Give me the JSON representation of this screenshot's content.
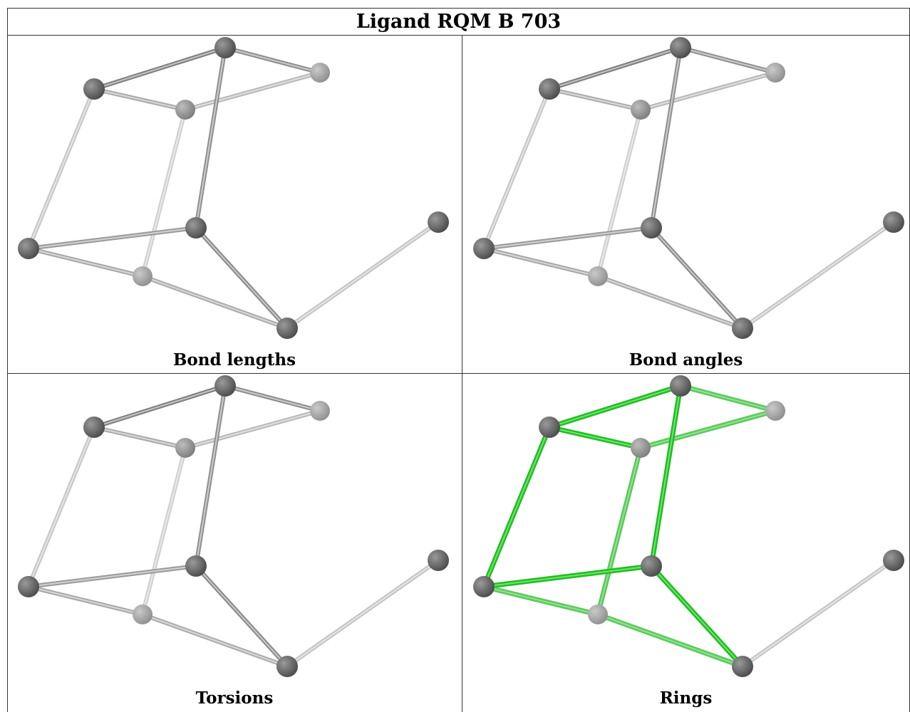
{
  "title": "Ligand RQM B 703",
  "panels": [
    {
      "caption": "Bond lengths",
      "highlight": "none"
    },
    {
      "caption": "Bond angles",
      "highlight": "none"
    },
    {
      "caption": "Torsions",
      "highlight": "none"
    },
    {
      "caption": "Rings",
      "highlight": "rings"
    }
  ],
  "molecule": {
    "atoms": [
      {
        "id": "a1",
        "depth": "front"
      },
      {
        "id": "a2",
        "depth": "front"
      },
      {
        "id": "a3",
        "depth": "mid"
      },
      {
        "id": "a4",
        "depth": "back"
      },
      {
        "id": "a5",
        "depth": "front"
      },
      {
        "id": "a6",
        "depth": "front"
      },
      {
        "id": "a7",
        "depth": "back"
      },
      {
        "id": "a8",
        "depth": "front"
      },
      {
        "id": "a9",
        "depth": "front"
      }
    ],
    "bonds": [
      {
        "from": "a1",
        "to": "a2",
        "ring": true
      },
      {
        "from": "a1",
        "to": "a3",
        "ring": true
      },
      {
        "from": "a2",
        "to": "a4",
        "ring": true
      },
      {
        "from": "a2",
        "to": "a5",
        "ring": true
      },
      {
        "from": "a3",
        "to": "a4",
        "ring": true
      },
      {
        "from": "a1",
        "to": "a6",
        "ring": true
      },
      {
        "from": "a4",
        "to": "a7",
        "ring": true
      },
      {
        "from": "a5",
        "to": "a6",
        "ring": true
      },
      {
        "from": "a5",
        "to": "a7",
        "ring": true
      },
      {
        "from": "a6",
        "to": "a8",
        "ring": true
      },
      {
        "from": "a7",
        "to": "a8",
        "ring": true
      },
      {
        "from": "a8",
        "to": "a9",
        "ring": false
      }
    ]
  },
  "colors": {
    "atom": "#5a5a5a",
    "bond": "#9a9a9a",
    "ring_highlight": "#1fbf1f",
    "border": "#333333"
  }
}
